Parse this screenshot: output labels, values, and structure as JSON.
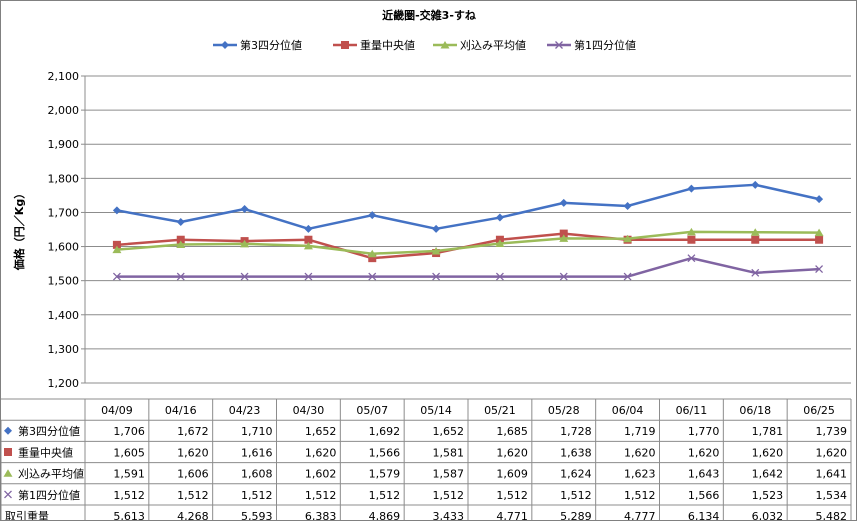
{
  "chart_data": {
    "type": "line",
    "title": "近畿圏-交雑3-すね",
    "ylabel": "価格（円／Kg）",
    "xlabel": "",
    "ylim": [
      1200,
      2100
    ],
    "yticks": [
      "1,200",
      "1,300",
      "1,400",
      "1,500",
      "1,600",
      "1,700",
      "1,800",
      "1,900",
      "2,000",
      "2,100"
    ],
    "ytick_values": [
      1200,
      1300,
      1400,
      1500,
      1600,
      1700,
      1800,
      1900,
      2000,
      2100
    ],
    "grid": true,
    "legend_position": "top",
    "categories": [
      "04/09",
      "04/16",
      "04/23",
      "04/30",
      "05/07",
      "05/14",
      "05/21",
      "05/28",
      "06/04",
      "06/11",
      "06/18",
      "06/25"
    ],
    "series": [
      {
        "name": "第3四分位値",
        "color": "#4472C4",
        "marker": "diamond",
        "values": [
          1706,
          1672,
          1710,
          1652,
          1692,
          1652,
          1685,
          1728,
          1719,
          1770,
          1781,
          1739
        ],
        "labels": [
          "1,706",
          "1,672",
          "1,710",
          "1,652",
          "1,692",
          "1,652",
          "1,685",
          "1,728",
          "1,719",
          "1,770",
          "1,781",
          "1,739"
        ]
      },
      {
        "name": "重量中央値",
        "color": "#C0504D",
        "marker": "square",
        "values": [
          1605,
          1620,
          1616,
          1620,
          1566,
          1581,
          1620,
          1638,
          1620,
          1620,
          1620,
          1620
        ],
        "labels": [
          "1,605",
          "1,620",
          "1,616",
          "1,620",
          "1,566",
          "1,581",
          "1,620",
          "1,638",
          "1,620",
          "1,620",
          "1,620",
          "1,620"
        ]
      },
      {
        "name": "刈込み平均値",
        "color": "#9BBB59",
        "marker": "triangle",
        "values": [
          1591,
          1606,
          1608,
          1602,
          1579,
          1587,
          1609,
          1624,
          1623,
          1643,
          1642,
          1641
        ],
        "labels": [
          "1,591",
          "1,606",
          "1,608",
          "1,602",
          "1,579",
          "1,587",
          "1,609",
          "1,624",
          "1,623",
          "1,643",
          "1,642",
          "1,641"
        ]
      },
      {
        "name": "第1四分位値",
        "color": "#8064A2",
        "marker": "x",
        "values": [
          1512,
          1512,
          1512,
          1512,
          1512,
          1512,
          1512,
          1512,
          1512,
          1566,
          1523,
          1534
        ],
        "labels": [
          "1,512",
          "1,512",
          "1,512",
          "1,512",
          "1,512",
          "1,512",
          "1,512",
          "1,512",
          "1,512",
          "1,566",
          "1,523",
          "1,534"
        ]
      }
    ],
    "table_extra_rows": [
      {
        "name": "取引重量",
        "values": [
          5613,
          4268,
          5593,
          6383,
          4869,
          3433,
          4771,
          5289,
          4777,
          6134,
          6032,
          5482
        ],
        "labels": [
          "5,613",
          "4,268",
          "5,593",
          "6,383",
          "4,869",
          "3,433",
          "4,771",
          "5,289",
          "4,777",
          "6,134",
          "6,032",
          "5,482"
        ]
      }
    ]
  }
}
